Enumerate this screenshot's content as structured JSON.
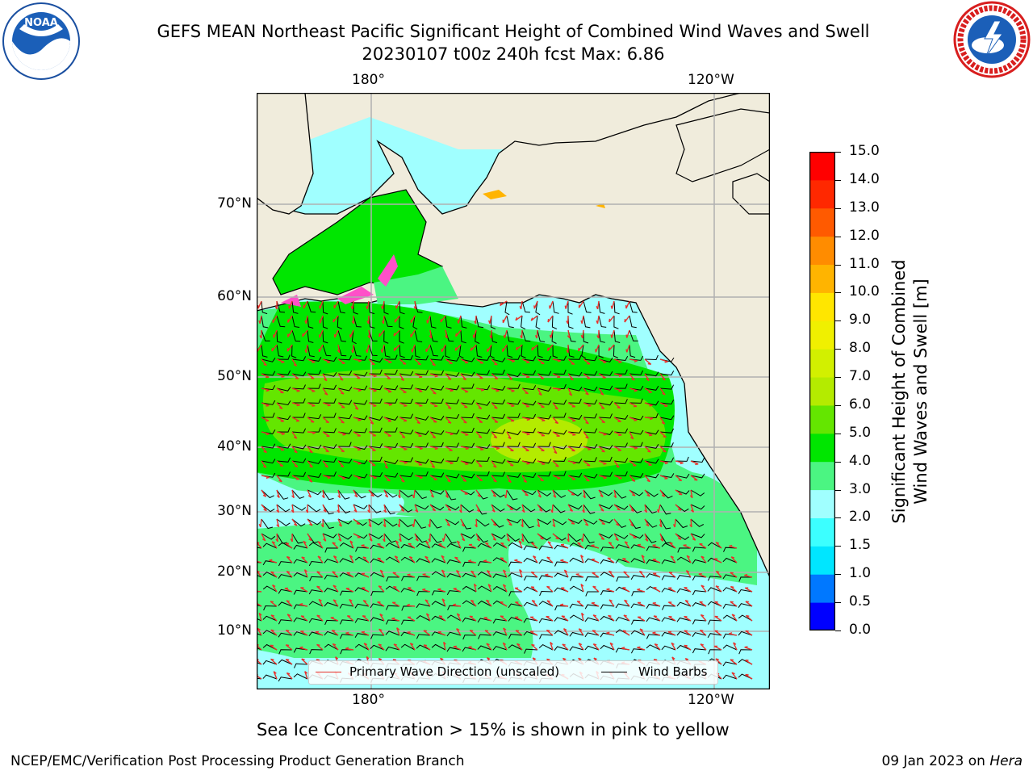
{
  "title": {
    "line1": "GEFS MEAN Northeast Pacific Significant Height of Combined Wind Waves and Swell",
    "line2": "20230107 t00z 240h fcst   Max: 6.86"
  },
  "logos": {
    "left": "noaa-logo",
    "right": "nws-logo"
  },
  "map": {
    "lon_labels_top": [
      "180°",
      "120°W"
    ],
    "lon_labels_bottom": [
      "180°",
      "120°W"
    ],
    "lat_labels": [
      "70°N",
      "60°N",
      "50°N",
      "40°N",
      "30°N",
      "20°N",
      "10°N"
    ],
    "land_color": "#f0ecdc",
    "legend": {
      "wave_label": "Primary Wave Direction (unscaled)",
      "wave_color": "#e8302a",
      "barb_label": "Wind Barbs",
      "barb_color": "#000000"
    }
  },
  "colorbar": {
    "label_line1": "Significant Height of Combined",
    "label_line2": "Wind Waves and Swell [m]",
    "levels": [
      "0.0",
      "0.5",
      "1.0",
      "1.5",
      "2.0",
      "3.0",
      "4.0",
      "5.0",
      "6.0",
      "7.0",
      "8.0",
      "9.0",
      "10.0",
      "11.0",
      "12.0",
      "13.0",
      "14.0",
      "15.0"
    ],
    "colors": [
      "#0000ff",
      "#0078ff",
      "#00e6ff",
      "#3cffff",
      "#a0ffff",
      "#4bf582",
      "#00e600",
      "#64e600",
      "#b4eb00",
      "#d2f000",
      "#f0f000",
      "#ffe600",
      "#ffb400",
      "#ff8c00",
      "#ff5a00",
      "#ff2800",
      "#ff0000"
    ]
  },
  "note": "Sea Ice Concentration > 15% is shown in pink to yellow",
  "footer": {
    "credit": "NCEP/EMC/Verification Post Processing Product Generation Branch",
    "date_prefix": "09 Jan 2023 on",
    "machine": "Hera"
  }
}
